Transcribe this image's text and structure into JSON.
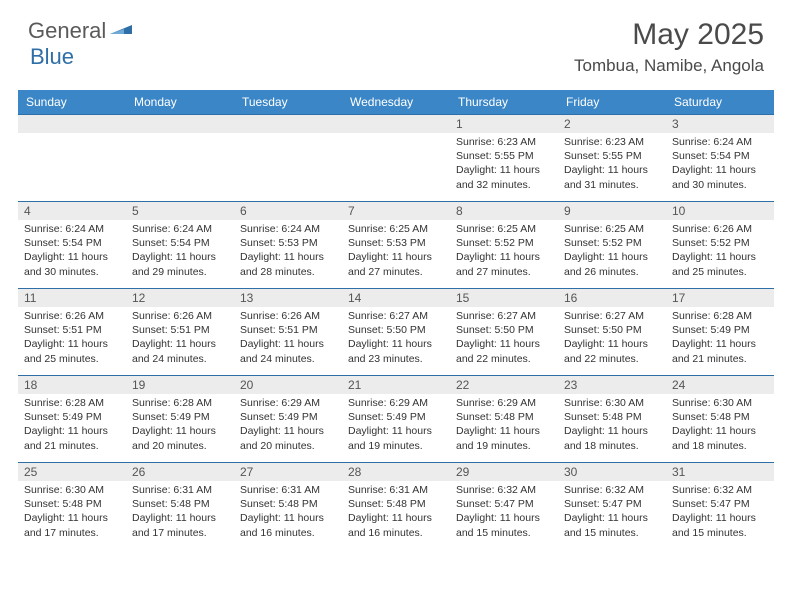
{
  "logo": {
    "general": "General",
    "blue": "Blue"
  },
  "title": "May 2025",
  "location": "Tombua, Namibe, Angola",
  "colors": {
    "header_bg": "#3b86c6",
    "header_text": "#ffffff",
    "daynum_bg": "#ececec",
    "border": "#2f6fa8",
    "text": "#333333",
    "title_text": "#4a4a4a",
    "logo_gray": "#5a5a5a",
    "logo_blue": "#2f6fa8"
  },
  "typography": {
    "title_fontsize": 30,
    "location_fontsize": 17,
    "dayhead_fontsize": 12,
    "daynum_fontsize": 12,
    "body_fontsize": 10.5
  },
  "day_names": [
    "Sunday",
    "Monday",
    "Tuesday",
    "Wednesday",
    "Thursday",
    "Friday",
    "Saturday"
  ],
  "weeks": [
    [
      {
        "n": "",
        "sr": "",
        "ss": "",
        "dl": ""
      },
      {
        "n": "",
        "sr": "",
        "ss": "",
        "dl": ""
      },
      {
        "n": "",
        "sr": "",
        "ss": "",
        "dl": ""
      },
      {
        "n": "",
        "sr": "",
        "ss": "",
        "dl": ""
      },
      {
        "n": "1",
        "sr": "Sunrise: 6:23 AM",
        "ss": "Sunset: 5:55 PM",
        "dl": "Daylight: 11 hours and 32 minutes."
      },
      {
        "n": "2",
        "sr": "Sunrise: 6:23 AM",
        "ss": "Sunset: 5:55 PM",
        "dl": "Daylight: 11 hours and 31 minutes."
      },
      {
        "n": "3",
        "sr": "Sunrise: 6:24 AM",
        "ss": "Sunset: 5:54 PM",
        "dl": "Daylight: 11 hours and 30 minutes."
      }
    ],
    [
      {
        "n": "4",
        "sr": "Sunrise: 6:24 AM",
        "ss": "Sunset: 5:54 PM",
        "dl": "Daylight: 11 hours and 30 minutes."
      },
      {
        "n": "5",
        "sr": "Sunrise: 6:24 AM",
        "ss": "Sunset: 5:54 PM",
        "dl": "Daylight: 11 hours and 29 minutes."
      },
      {
        "n": "6",
        "sr": "Sunrise: 6:24 AM",
        "ss": "Sunset: 5:53 PM",
        "dl": "Daylight: 11 hours and 28 minutes."
      },
      {
        "n": "7",
        "sr": "Sunrise: 6:25 AM",
        "ss": "Sunset: 5:53 PM",
        "dl": "Daylight: 11 hours and 27 minutes."
      },
      {
        "n": "8",
        "sr": "Sunrise: 6:25 AM",
        "ss": "Sunset: 5:52 PM",
        "dl": "Daylight: 11 hours and 27 minutes."
      },
      {
        "n": "9",
        "sr": "Sunrise: 6:25 AM",
        "ss": "Sunset: 5:52 PM",
        "dl": "Daylight: 11 hours and 26 minutes."
      },
      {
        "n": "10",
        "sr": "Sunrise: 6:26 AM",
        "ss": "Sunset: 5:52 PM",
        "dl": "Daylight: 11 hours and 25 minutes."
      }
    ],
    [
      {
        "n": "11",
        "sr": "Sunrise: 6:26 AM",
        "ss": "Sunset: 5:51 PM",
        "dl": "Daylight: 11 hours and 25 minutes."
      },
      {
        "n": "12",
        "sr": "Sunrise: 6:26 AM",
        "ss": "Sunset: 5:51 PM",
        "dl": "Daylight: 11 hours and 24 minutes."
      },
      {
        "n": "13",
        "sr": "Sunrise: 6:26 AM",
        "ss": "Sunset: 5:51 PM",
        "dl": "Daylight: 11 hours and 24 minutes."
      },
      {
        "n": "14",
        "sr": "Sunrise: 6:27 AM",
        "ss": "Sunset: 5:50 PM",
        "dl": "Daylight: 11 hours and 23 minutes."
      },
      {
        "n": "15",
        "sr": "Sunrise: 6:27 AM",
        "ss": "Sunset: 5:50 PM",
        "dl": "Daylight: 11 hours and 22 minutes."
      },
      {
        "n": "16",
        "sr": "Sunrise: 6:27 AM",
        "ss": "Sunset: 5:50 PM",
        "dl": "Daylight: 11 hours and 22 minutes."
      },
      {
        "n": "17",
        "sr": "Sunrise: 6:28 AM",
        "ss": "Sunset: 5:49 PM",
        "dl": "Daylight: 11 hours and 21 minutes."
      }
    ],
    [
      {
        "n": "18",
        "sr": "Sunrise: 6:28 AM",
        "ss": "Sunset: 5:49 PM",
        "dl": "Daylight: 11 hours and 21 minutes."
      },
      {
        "n": "19",
        "sr": "Sunrise: 6:28 AM",
        "ss": "Sunset: 5:49 PM",
        "dl": "Daylight: 11 hours and 20 minutes."
      },
      {
        "n": "20",
        "sr": "Sunrise: 6:29 AM",
        "ss": "Sunset: 5:49 PM",
        "dl": "Daylight: 11 hours and 20 minutes."
      },
      {
        "n": "21",
        "sr": "Sunrise: 6:29 AM",
        "ss": "Sunset: 5:49 PM",
        "dl": "Daylight: 11 hours and 19 minutes."
      },
      {
        "n": "22",
        "sr": "Sunrise: 6:29 AM",
        "ss": "Sunset: 5:48 PM",
        "dl": "Daylight: 11 hours and 19 minutes."
      },
      {
        "n": "23",
        "sr": "Sunrise: 6:30 AM",
        "ss": "Sunset: 5:48 PM",
        "dl": "Daylight: 11 hours and 18 minutes."
      },
      {
        "n": "24",
        "sr": "Sunrise: 6:30 AM",
        "ss": "Sunset: 5:48 PM",
        "dl": "Daylight: 11 hours and 18 minutes."
      }
    ],
    [
      {
        "n": "25",
        "sr": "Sunrise: 6:30 AM",
        "ss": "Sunset: 5:48 PM",
        "dl": "Daylight: 11 hours and 17 minutes."
      },
      {
        "n": "26",
        "sr": "Sunrise: 6:31 AM",
        "ss": "Sunset: 5:48 PM",
        "dl": "Daylight: 11 hours and 17 minutes."
      },
      {
        "n": "27",
        "sr": "Sunrise: 6:31 AM",
        "ss": "Sunset: 5:48 PM",
        "dl": "Daylight: 11 hours and 16 minutes."
      },
      {
        "n": "28",
        "sr": "Sunrise: 6:31 AM",
        "ss": "Sunset: 5:48 PM",
        "dl": "Daylight: 11 hours and 16 minutes."
      },
      {
        "n": "29",
        "sr": "Sunrise: 6:32 AM",
        "ss": "Sunset: 5:47 PM",
        "dl": "Daylight: 11 hours and 15 minutes."
      },
      {
        "n": "30",
        "sr": "Sunrise: 6:32 AM",
        "ss": "Sunset: 5:47 PM",
        "dl": "Daylight: 11 hours and 15 minutes."
      },
      {
        "n": "31",
        "sr": "Sunrise: 6:32 AM",
        "ss": "Sunset: 5:47 PM",
        "dl": "Daylight: 11 hours and 15 minutes."
      }
    ]
  ]
}
